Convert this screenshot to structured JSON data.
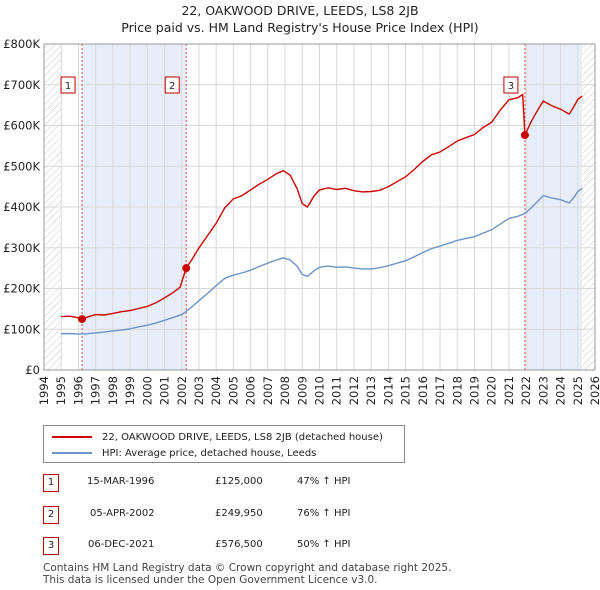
{
  "chart_data": {
    "type": "line",
    "title": "22, OAKWOOD DRIVE, LEEDS, LS8 2JB",
    "subtitle": "Price paid vs. HM Land Registry's House Price Index (HPI)",
    "x_range": [
      1994,
      2026
    ],
    "ylim": [
      0,
      800000
    ],
    "y_ticks": [
      {
        "value": 0,
        "label": "£0"
      },
      {
        "value": 100000,
        "label": "£100K"
      },
      {
        "value": 200000,
        "label": "£200K"
      },
      {
        "value": 300000,
        "label": "£300K"
      },
      {
        "value": 400000,
        "label": "£400K"
      },
      {
        "value": 500000,
        "label": "£500K"
      },
      {
        "value": 600000,
        "label": "£600K"
      },
      {
        "value": 700000,
        "label": "£700K"
      },
      {
        "value": 800000,
        "label": "£800K"
      }
    ],
    "x_ticks": [
      "1994",
      "1995",
      "1996",
      "1997",
      "1998",
      "1999",
      "2000",
      "2001",
      "2002",
      "2003",
      "2004",
      "2005",
      "2006",
      "2007",
      "2008",
      "2009",
      "2010",
      "2011",
      "2012",
      "2013",
      "2014",
      "2015",
      "2016",
      "2017",
      "2018",
      "2019",
      "2020",
      "2021",
      "2022",
      "2023",
      "2024",
      "2025",
      "2026"
    ],
    "data_start": 1995.0,
    "data_end": 2025.25,
    "series": [
      {
        "name": "22, OAKWOOD DRIVE, LEEDS, LS8 2JB (detached house)",
        "color": "#cc0000",
        "points": [
          [
            1995.0,
            131000
          ],
          [
            1995.5,
            132000
          ],
          [
            1996.0,
            128000
          ],
          [
            1996.21,
            125000
          ],
          [
            1996.6,
            131000
          ],
          [
            1997.0,
            136000
          ],
          [
            1997.5,
            135000
          ],
          [
            1998.0,
            139000
          ],
          [
            1998.5,
            143000
          ],
          [
            1999.0,
            146000
          ],
          [
            1999.5,
            151000
          ],
          [
            2000.0,
            156000
          ],
          [
            2000.5,
            165000
          ],
          [
            2001.0,
            177000
          ],
          [
            2001.5,
            190000
          ],
          [
            2001.9,
            203000
          ],
          [
            2002.26,
            249950
          ],
          [
            2002.6,
            272000
          ],
          [
            2003.0,
            300000
          ],
          [
            2003.5,
            330000
          ],
          [
            2004.0,
            360000
          ],
          [
            2004.5,
            398000
          ],
          [
            2005.0,
            420000
          ],
          [
            2005.5,
            428000
          ],
          [
            2006.0,
            442000
          ],
          [
            2006.5,
            456000
          ],
          [
            2007.0,
            468000
          ],
          [
            2007.5,
            482000
          ],
          [
            2007.9,
            489000
          ],
          [
            2008.3,
            478000
          ],
          [
            2008.7,
            445000
          ],
          [
            2009.0,
            408000
          ],
          [
            2009.3,
            400000
          ],
          [
            2009.7,
            428000
          ],
          [
            2010.0,
            442000
          ],
          [
            2010.5,
            447000
          ],
          [
            2011.0,
            443000
          ],
          [
            2011.5,
            446000
          ],
          [
            2012.0,
            440000
          ],
          [
            2012.5,
            437000
          ],
          [
            2013.0,
            438000
          ],
          [
            2013.5,
            441000
          ],
          [
            2014.0,
            450000
          ],
          [
            2014.5,
            462000
          ],
          [
            2015.0,
            474000
          ],
          [
            2015.5,
            492000
          ],
          [
            2016.0,
            512000
          ],
          [
            2016.5,
            528000
          ],
          [
            2017.0,
            535000
          ],
          [
            2017.5,
            548000
          ],
          [
            2018.0,
            562000
          ],
          [
            2018.5,
            570000
          ],
          [
            2019.0,
            578000
          ],
          [
            2019.5,
            595000
          ],
          [
            2020.0,
            608000
          ],
          [
            2020.5,
            638000
          ],
          [
            2021.0,
            663000
          ],
          [
            2021.5,
            668000
          ],
          [
            2021.8,
            676000
          ],
          [
            2021.93,
            576500
          ],
          [
            2022.3,
            610000
          ],
          [
            2022.7,
            640000
          ],
          [
            2023.0,
            660000
          ],
          [
            2023.5,
            648000
          ],
          [
            2024.0,
            640000
          ],
          [
            2024.5,
            628000
          ],
          [
            2024.8,
            648000
          ],
          [
            2025.0,
            664000
          ],
          [
            2025.25,
            672000
          ]
        ]
      },
      {
        "name": "HPI: Average price, detached house, Leeds",
        "color": "#6c94c7",
        "points": [
          [
            1995.0,
            89000
          ],
          [
            1995.5,
            89500
          ],
          [
            1996.0,
            88000
          ],
          [
            1996.5,
            89000
          ],
          [
            1997.0,
            91000
          ],
          [
            1997.5,
            93000
          ],
          [
            1998.0,
            96000
          ],
          [
            1998.5,
            98000
          ],
          [
            1999.0,
            101000
          ],
          [
            1999.5,
            106000
          ],
          [
            2000.0,
            110000
          ],
          [
            2000.5,
            115000
          ],
          [
            2001.0,
            122000
          ],
          [
            2001.5,
            129000
          ],
          [
            2002.0,
            136000
          ],
          [
            2002.5,
            152000
          ],
          [
            2003.0,
            170000
          ],
          [
            2003.5,
            188000
          ],
          [
            2004.0,
            207000
          ],
          [
            2004.5,
            225000
          ],
          [
            2005.0,
            233000
          ],
          [
            2005.5,
            238000
          ],
          [
            2006.0,
            245000
          ],
          [
            2006.5,
            254000
          ],
          [
            2007.0,
            262000
          ],
          [
            2007.5,
            270000
          ],
          [
            2007.9,
            275000
          ],
          [
            2008.3,
            270000
          ],
          [
            2008.7,
            255000
          ],
          [
            2009.0,
            234000
          ],
          [
            2009.3,
            230000
          ],
          [
            2009.7,
            244000
          ],
          [
            2010.0,
            252000
          ],
          [
            2010.5,
            255000
          ],
          [
            2011.0,
            252000
          ],
          [
            2011.5,
            253000
          ],
          [
            2012.0,
            250000
          ],
          [
            2012.5,
            248000
          ],
          [
            2013.0,
            248000
          ],
          [
            2013.5,
            251000
          ],
          [
            2014.0,
            256000
          ],
          [
            2014.5,
            262000
          ],
          [
            2015.0,
            268000
          ],
          [
            2015.5,
            278000
          ],
          [
            2016.0,
            288000
          ],
          [
            2016.5,
            298000
          ],
          [
            2017.0,
            304000
          ],
          [
            2017.5,
            311000
          ],
          [
            2018.0,
            318000
          ],
          [
            2018.5,
            323000
          ],
          [
            2019.0,
            327000
          ],
          [
            2019.5,
            336000
          ],
          [
            2020.0,
            344000
          ],
          [
            2020.5,
            358000
          ],
          [
            2021.0,
            372000
          ],
          [
            2021.5,
            377000
          ],
          [
            2021.93,
            384000
          ],
          [
            2022.3,
            398000
          ],
          [
            2022.7,
            415000
          ],
          [
            2023.0,
            428000
          ],
          [
            2023.5,
            422000
          ],
          [
            2024.0,
            418000
          ],
          [
            2024.5,
            410000
          ],
          [
            2024.8,
            425000
          ],
          [
            2025.0,
            438000
          ],
          [
            2025.25,
            446000
          ]
        ]
      }
    ],
    "sales": [
      {
        "label": "1",
        "x": 1996.21,
        "y": 125000
      },
      {
        "label": "2",
        "x": 2002.26,
        "y": 249950
      },
      {
        "label": "3",
        "x": 2021.93,
        "y": 576500
      }
    ],
    "hatched_regions": [
      [
        1994,
        1995.0
      ],
      [
        2025.25,
        2026
      ]
    ],
    "shaded_ranges": [
      [
        1996.21,
        2002.26
      ],
      [
        2021.93,
        2025.25
      ]
    ],
    "grid": true
  },
  "legend": {
    "items": [
      {
        "label": "22, OAKWOOD DRIVE, LEEDS, LS8 2JB (detached house)",
        "color": "#cc0000"
      },
      {
        "label": "HPI: Average price, detached house, Leeds",
        "color": "#6c94c7"
      }
    ]
  },
  "transactions": [
    {
      "num": "1",
      "date": "15-MAR-1996",
      "price": "£125,000",
      "hpi": "47% ↑ HPI"
    },
    {
      "num": "2",
      "date": "05-APR-2002",
      "price": "£249,950",
      "hpi": "76% ↑ HPI"
    },
    {
      "num": "3",
      "date": "06-DEC-2021",
      "price": "£576,500",
      "hpi": "50% ↑ HPI"
    }
  ],
  "footer": {
    "line1": "Contains HM Land Registry data © Crown copyright and database right 2025.",
    "line2": "This data is licensed under the Open Government Licence v3.0."
  }
}
